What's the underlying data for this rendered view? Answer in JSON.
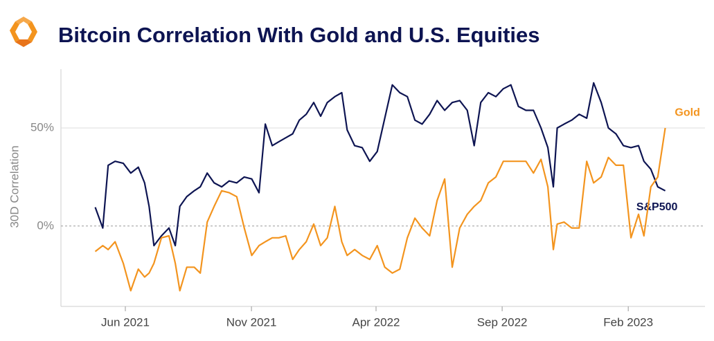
{
  "chart_data": {
    "type": "line",
    "title": "Bitcoin Correlation With Gold and U.S. Equities",
    "y_label": "30D Correlation",
    "x": [
      2021.314,
      2021.339,
      2021.357,
      2021.38,
      2021.407,
      2021.432,
      2021.457,
      2021.478,
      2021.493,
      2021.509,
      2021.534,
      2021.559,
      2021.58,
      2021.595,
      2021.618,
      2021.643,
      2021.663,
      2021.686,
      2021.709,
      2021.734,
      2021.759,
      2021.784,
      2021.809,
      2021.834,
      2021.858,
      2021.879,
      2021.902,
      2021.924,
      2021.947,
      2021.97,
      2021.992,
      2022.015,
      2022.04,
      2022.063,
      2022.085,
      2022.11,
      2022.133,
      2022.151,
      2022.176,
      2022.201,
      2022.226,
      2022.251,
      2022.276,
      2022.301,
      2022.326,
      2022.351,
      2022.376,
      2022.4,
      2022.425,
      2022.45,
      2022.475,
      2022.5,
      2022.525,
      2022.55,
      2022.573,
      2022.595,
      2022.62,
      2022.645,
      2022.67,
      2022.695,
      2022.72,
      2022.745,
      2022.77,
      2022.795,
      2022.818,
      2022.836,
      2022.849,
      2022.872,
      2022.897,
      2022.922,
      2022.947,
      2022.97,
      2022.995,
      2023.019,
      2023.044,
      2023.069,
      2023.094,
      2023.119,
      2023.137,
      2023.16,
      2023.183,
      2023.208
    ],
    "series": [
      {
        "name": "S&P500",
        "color": "#0d1452",
        "values": [
          9.6,
          -1,
          31,
          33,
          32,
          27,
          30,
          22,
          10,
          -10,
          -5,
          -1,
          -10,
          10,
          15,
          18,
          20,
          27,
          22,
          20,
          23,
          22,
          25,
          24,
          17,
          52,
          41,
          43,
          45,
          47,
          54,
          57,
          63,
          56,
          63,
          66,
          68,
          49,
          41,
          40,
          33,
          38,
          55,
          72,
          68,
          66,
          54,
          52,
          57,
          64,
          59,
          63,
          64,
          59,
          41,
          63,
          68,
          66,
          70,
          72,
          61,
          59,
          59,
          50,
          40,
          20,
          50,
          52,
          54,
          57,
          55,
          73,
          63,
          50,
          47,
          41,
          40,
          41,
          33,
          29,
          20,
          18
        ]
      },
      {
        "name": "Gold",
        "color": "#f3941e",
        "values": [
          -13,
          -10,
          -12,
          -8,
          -19,
          -33,
          -22,
          -26,
          -24,
          -19,
          -6,
          -5,
          -19,
          -33,
          -21,
          -21,
          -24,
          2,
          10,
          18,
          17,
          15,
          -1,
          -15,
          -10,
          -8,
          -6,
          -6,
          -5,
          -17,
          -12,
          -8,
          1,
          -10,
          -6,
          10,
          -8,
          -15,
          -12,
          -15,
          -17,
          -10,
          -21,
          -24,
          -22,
          -6,
          4,
          -1,
          -5,
          13,
          24,
          -21,
          -1,
          6,
          10,
          13,
          22,
          25,
          33,
          33,
          33,
          33,
          27,
          34,
          20,
          -12,
          1,
          2,
          -1,
          -1,
          33,
          22,
          25,
          35,
          31,
          31,
          -6,
          6,
          -5,
          20,
          25,
          50
        ]
      }
    ],
    "xlim": [
      2021.2,
      2023.34
    ],
    "xticks": [
      {
        "value": 2021.414,
        "label": "Jun 2021"
      },
      {
        "value": 2021.833,
        "label": "Nov 2021"
      },
      {
        "value": 2022.247,
        "label": "Apr 2022"
      },
      {
        "value": 2022.666,
        "label": "Sep 2022"
      },
      {
        "value": 2023.085,
        "label": "Feb 2023"
      }
    ],
    "ylim": [
      -41,
      80
    ],
    "yticks": [
      {
        "value": 0,
        "label": "0%"
      },
      {
        "value": 50,
        "label": "50%"
      }
    ],
    "grid": true
  }
}
